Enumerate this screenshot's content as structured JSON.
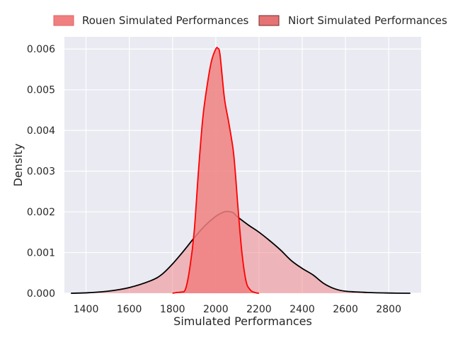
{
  "chart_data": {
    "type": "area",
    "xlabel": "Simulated Performances",
    "ylabel": "Density",
    "xlim": [
      1300,
      2950
    ],
    "ylim": [
      0,
      0.0063
    ],
    "x_ticks": [
      1400,
      1600,
      1800,
      2000,
      2200,
      2400,
      2600,
      2800
    ],
    "y_ticks": [
      0.0,
      0.001,
      0.002,
      0.003,
      0.004,
      0.005,
      0.006
    ],
    "y_tick_labels": [
      "0.000",
      "0.001",
      "0.002",
      "0.003",
      "0.004",
      "0.005",
      "0.006"
    ],
    "grid": true,
    "legend_position": "top",
    "series": [
      {
        "name": "Rouen Simulated Performances",
        "line_color": "#000000",
        "fill_color": "#f08080",
        "fill_opacity": 0.5,
        "x": [
          1330,
          1400,
          1500,
          1600,
          1700,
          1750,
          1800,
          1850,
          1900,
          1950,
          2000,
          2030,
          2050,
          2080,
          2100,
          2150,
          2200,
          2250,
          2300,
          2350,
          2400,
          2450,
          2500,
          2550,
          2600,
          2700,
          2800,
          2900
        ],
        "y": [
          0.0,
          1e-05,
          5e-05,
          0.00014,
          0.00031,
          0.00046,
          0.00072,
          0.00103,
          0.00136,
          0.00166,
          0.00189,
          0.00198,
          0.00201,
          0.00198,
          0.00188,
          0.00168,
          0.0015,
          0.00129,
          0.00106,
          0.0008,
          0.00061,
          0.00045,
          0.00024,
          0.00011,
          5e-05,
          2e-05,
          5e-06,
          0.0
        ]
      },
      {
        "name": "Niort Simulated Performances",
        "line_color": "#ff0000",
        "fill_color": "#f08080",
        "fill_opacity": 0.85,
        "x": [
          1800,
          1820,
          1840,
          1860,
          1880,
          1900,
          1920,
          1940,
          1960,
          1980,
          2000,
          2010,
          2020,
          2040,
          2060,
          2080,
          2090,
          2100,
          2120,
          2140,
          2160,
          2180,
          2200
        ],
        "y": [
          0.0,
          2e-05,
          3e-05,
          0.0001,
          0.00062,
          0.0015,
          0.003,
          0.0043,
          0.0051,
          0.0057,
          0.006,
          0.00602,
          0.00585,
          0.0048,
          0.0042,
          0.00355,
          0.003,
          0.0023,
          0.00105,
          0.0003,
          8e-05,
          2e-05,
          0.0
        ]
      }
    ]
  }
}
